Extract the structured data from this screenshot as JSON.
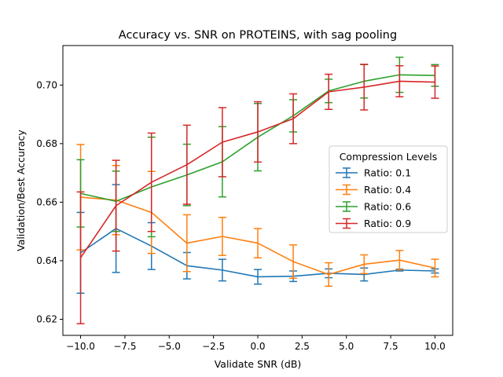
{
  "chart_data": {
    "type": "line",
    "title": "Accuracy vs. SNR on PROTEINS, with sag pooling",
    "xlabel": "Validate SNR (dB)",
    "ylabel": "Validation/Best Accuracy",
    "xlim": [
      -11.0,
      11.0
    ],
    "ylim": [
      0.6145,
      0.7135
    ],
    "xticks": [
      -10.0,
      -7.5,
      -5.0,
      -2.5,
      0.0,
      2.5,
      5.0,
      7.5,
      10.0
    ],
    "xtick_labels": [
      "−10.0",
      "−7.5",
      "−5.0",
      "−2.5",
      "0.0",
      "2.5",
      "5.0",
      "7.5",
      "10.0"
    ],
    "yticks": [
      0.62,
      0.64,
      0.66,
      0.68,
      0.7
    ],
    "ytick_labels": [
      "0.62",
      "0.64",
      "0.66",
      "0.68",
      "0.70"
    ],
    "grid": false,
    "legend": {
      "title": "Compression Levels",
      "placement": "center-right"
    },
    "x": [
      -10,
      -8,
      -6,
      -4,
      -2,
      0,
      2,
      4,
      6,
      8,
      10
    ],
    "series": [
      {
        "name": "Ratio: 0.1",
        "color": "#1f77b4",
        "values": [
          0.6427,
          0.651,
          0.645,
          0.6383,
          0.6368,
          0.6345,
          0.6347,
          0.6357,
          0.6353,
          0.6368,
          0.6365
        ],
        "errors": [
          0.0138,
          0.015,
          0.008,
          0.0045,
          0.0037,
          0.0025,
          0.0018,
          0.0015,
          0.0022,
          0.0003,
          0.0007
        ]
      },
      {
        "name": "Ratio: 0.4",
        "color": "#ff7f0e",
        "values": [
          0.6617,
          0.6607,
          0.6565,
          0.646,
          0.6483,
          0.646,
          0.6397,
          0.6353,
          0.6388,
          0.6402,
          0.6375
        ],
        "errors": [
          0.018,
          0.0118,
          0.014,
          0.0097,
          0.0065,
          0.005,
          0.0057,
          0.004,
          0.0032,
          0.0033,
          0.003
        ]
      },
      {
        "name": "Ratio: 0.6",
        "color": "#2ca02c",
        "values": [
          0.663,
          0.6603,
          0.6652,
          0.6693,
          0.6738,
          0.6822,
          0.6895,
          0.698,
          0.7013,
          0.7035,
          0.7033
        ],
        "errors": [
          0.0115,
          0.0103,
          0.017,
          0.0105,
          0.012,
          0.0115,
          0.0055,
          0.004,
          0.0057,
          0.006,
          0.0037
        ]
      },
      {
        "name": "Ratio: 0.9",
        "color": "#d62728",
        "values": [
          0.641,
          0.6588,
          0.6668,
          0.6728,
          0.6805,
          0.684,
          0.6885,
          0.6977,
          0.6993,
          0.7013,
          0.701
        ],
        "errors": [
          0.0225,
          0.0155,
          0.0168,
          0.0135,
          0.0118,
          0.0103,
          0.0085,
          0.006,
          0.0078,
          0.0053,
          0.0055
        ]
      }
    ]
  }
}
